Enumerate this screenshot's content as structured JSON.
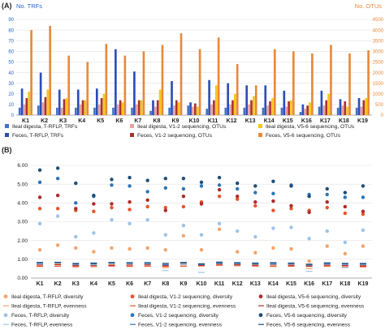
{
  "chart_data": [
    {
      "panel_label": "(A)",
      "type": "bar",
      "categories": [
        "K1",
        "K2",
        "K3",
        "K4",
        "K5",
        "K6",
        "K7",
        "K8",
        "K9",
        "K10",
        "K11",
        "K12",
        "K13",
        "K14",
        "K15",
        "K16",
        "K17",
        "K18",
        "K19"
      ],
      "left_axis": {
        "title": "No. TRFs",
        "ylim": [
          0,
          90
        ],
        "ticks": [
          "0",
          "10",
          "20",
          "30",
          "40",
          "50",
          "60",
          "70",
          "80",
          "90"
        ]
      },
      "right_axis": {
        "title": "No. OTUs",
        "ylim": [
          0,
          4500
        ],
        "ticks": [
          "0",
          "500",
          "1000",
          "1500",
          "2000",
          "2500",
          "3000",
          "3500",
          "4000",
          "4500"
        ]
      },
      "grid": true,
      "legend_position": "bottom",
      "series": [
        {
          "name": "Ileal digesta, T-RFLP, TRFs",
          "axis": "left",
          "color": "#4472c4",
          "values": [
            7,
            9,
            7,
            7,
            7,
            7,
            7,
            4,
            7,
            9,
            6,
            7,
            7,
            7,
            7,
            3,
            8,
            7,
            7
          ]
        },
        {
          "name": "Feces, T-RFLP, TRFs",
          "axis": "left",
          "color": "#2a4eb8",
          "values": [
            25,
            40,
            24,
            24,
            25,
            62,
            41,
            14,
            32,
            12,
            33,
            30,
            28,
            28,
            23,
            10,
            23,
            15,
            16
          ]
        },
        {
          "name": "Ileal digesta, V1-2 sequencing, OTUs",
          "axis": "right",
          "color": "#e8a0a0",
          "values": [
            500,
            600,
            350,
            500,
            500,
            500,
            500,
            400,
            450,
            400,
            500,
            500,
            500,
            450,
            400,
            300,
            450,
            450,
            400
          ]
        },
        {
          "name": "Feces, V1-2 sequencing, OTUs",
          "axis": "right",
          "color": "#a83232",
          "values": [
            800,
            850,
            750,
            700,
            800,
            700,
            700,
            700,
            700,
            550,
            700,
            700,
            700,
            650,
            650,
            450,
            700,
            650,
            700
          ]
        },
        {
          "name": "Ileal digesta, V5-6 sequencing, OTUs",
          "axis": "right",
          "color": "#f5c518",
          "values": [
            1100,
            1200,
            800,
            700,
            1000,
            600,
            700,
            1200,
            600,
            400,
            1400,
            1000,
            900,
            800,
            700,
            600,
            1000,
            400,
            800
          ]
        },
        {
          "name": "Feces, V5-6 sequencing, OTUs",
          "axis": "right",
          "color": "#e8893a",
          "values": [
            4000,
            4200,
            2800,
            2500,
            3350,
            2800,
            3000,
            3300,
            3850,
            3100,
            3650,
            2400,
            1400,
            3100,
            3000,
            2900,
            3300,
            2900,
            3050
          ]
        }
      ]
    },
    {
      "panel_label": "(B)",
      "type": "scatter",
      "categories": [
        "K1",
        "K2",
        "K3",
        "K4",
        "K5",
        "K6",
        "K7",
        "K8",
        "K9",
        "K10",
        "K11",
        "K12",
        "K13",
        "K14",
        "K15",
        "K16",
        "K17",
        "K18",
        "K19"
      ],
      "ylim": [
        0,
        6
      ],
      "yticks": [
        "0.00",
        "1.00",
        "2.00",
        "3.00",
        "4.00",
        "5.00",
        "6.00"
      ],
      "grid": true,
      "legend_position": "bottom",
      "series": [
        {
          "name": "Ileal digesta, T-RFLP, diversity",
          "marker": "dot",
          "color": "#f4a36b",
          "values": [
            1.5,
            1.75,
            1.6,
            1.4,
            1.6,
            1.55,
            1.6,
            1.5,
            2.25,
            1.5,
            2.6,
            1.4,
            1.35,
            1.6,
            1.55,
            0.9,
            1.7,
            1.3,
            1.7
          ]
        },
        {
          "name": "Ileal digesta, V1-2 sequencing, diversity",
          "marker": "dot",
          "color": "#e8542c",
          "values": [
            3.7,
            3.7,
            3.6,
            3.55,
            3.75,
            3.65,
            3.8,
            3.75,
            3.8,
            4.05,
            4.35,
            4.2,
            3.85,
            3.6,
            3.7,
            3.6,
            3.75,
            3.45,
            3.4
          ]
        },
        {
          "name": "Ileal digesta, V5-6 sequencing, diversity",
          "marker": "dot",
          "color": "#b02a2a",
          "values": [
            4.3,
            4.4,
            3.7,
            3.95,
            3.95,
            4.05,
            4.15,
            3.6,
            4.35,
            3.95,
            4.7,
            4.35,
            4.05,
            4.1,
            3.85,
            3.5,
            4.05,
            3.8,
            3.55
          ]
        },
        {
          "name": "Ileal digesta, T-RFLP, evenness",
          "marker": "dash",
          "color": "#f4a36b",
          "values": [
            0.68,
            0.75,
            0.7,
            0.68,
            0.72,
            0.7,
            0.74,
            0.55,
            0.76,
            0.66,
            0.75,
            0.72,
            0.74,
            0.7,
            0.72,
            0.5,
            0.7,
            0.6,
            0.68
          ]
        },
        {
          "name": "Ileal digesta, V1-2 sequencing, evenness",
          "marker": "dash",
          "color": "#e8542c",
          "values": [
            0.62,
            0.63,
            0.6,
            0.61,
            0.64,
            0.62,
            0.63,
            0.62,
            0.63,
            0.65,
            0.68,
            0.66,
            0.64,
            0.62,
            0.63,
            0.62,
            0.63,
            0.6,
            0.6
          ]
        },
        {
          "name": "Ileal digesta, V5-6 sequencing, evenness",
          "marker": "dash",
          "color": "#b02a2a",
          "values": [
            0.7,
            0.71,
            0.66,
            0.68,
            0.68,
            0.69,
            0.7,
            0.66,
            0.71,
            0.68,
            0.74,
            0.72,
            0.69,
            0.7,
            0.68,
            0.64,
            0.69,
            0.67,
            0.65
          ]
        },
        {
          "name": "Feces, T-RFLP, diversity",
          "marker": "dot",
          "color": "#9dc3e6",
          "values": [
            2.9,
            3.3,
            2.2,
            2.4,
            3.1,
            2.9,
            3.1,
            2.3,
            2.8,
            2.3,
            2.9,
            2.5,
            2.2,
            2.65,
            2.7,
            2.1,
            2.5,
            1.9,
            2.55
          ]
        },
        {
          "name": "Feces, V1-2 sequencing, diversity",
          "marker": "dot",
          "color": "#2e75b6",
          "values": [
            5.1,
            5.3,
            4.0,
            4.35,
            4.95,
            4.9,
            4.6,
            4.8,
            4.75,
            4.9,
            4.95,
            4.75,
            4.55,
            4.5,
            4.95,
            4.45,
            4.45,
            4.3,
            4.3
          ]
        },
        {
          "name": "Feces, V5-6 sequencing, diversity",
          "marker": "dot",
          "color": "#1f4e79",
          "values": [
            5.75,
            5.85,
            5.05,
            4.4,
            5.25,
            5.35,
            5.2,
            5.3,
            5.3,
            5.1,
            5.35,
            5.05,
            4.9,
            5.15,
            4.9,
            4.35,
            4.75,
            4.55,
            4.9
          ]
        },
        {
          "name": "Feces, T-RFLP, evenness",
          "marker": "dash",
          "color": "#9dc3e6",
          "values": [
            0.75,
            0.8,
            0.72,
            0.72,
            0.78,
            0.76,
            0.76,
            0.4,
            0.72,
            0.3,
            0.78,
            0.76,
            0.74,
            0.74,
            0.74,
            0.36,
            0.74,
            0.56,
            0.72
          ]
        },
        {
          "name": "Feces, V1-2 sequencing, evenness",
          "marker": "dash",
          "color": "#2e75b6",
          "values": [
            0.8,
            0.82,
            0.74,
            0.76,
            0.8,
            0.79,
            0.79,
            0.72,
            0.8,
            0.72,
            0.8,
            0.78,
            0.77,
            0.78,
            0.77,
            0.7,
            0.77,
            0.74,
            0.74
          ]
        },
        {
          "name": "Feces, V5-6 sequencing, evenness",
          "marker": "dash",
          "color": "#1f4e79",
          "values": [
            0.83,
            0.84,
            0.78,
            0.8,
            0.83,
            0.82,
            0.82,
            0.78,
            0.83,
            0.76,
            0.85,
            0.82,
            0.8,
            0.82,
            0.8,
            0.74,
            0.81,
            0.78,
            0.78
          ]
        }
      ]
    }
  ]
}
